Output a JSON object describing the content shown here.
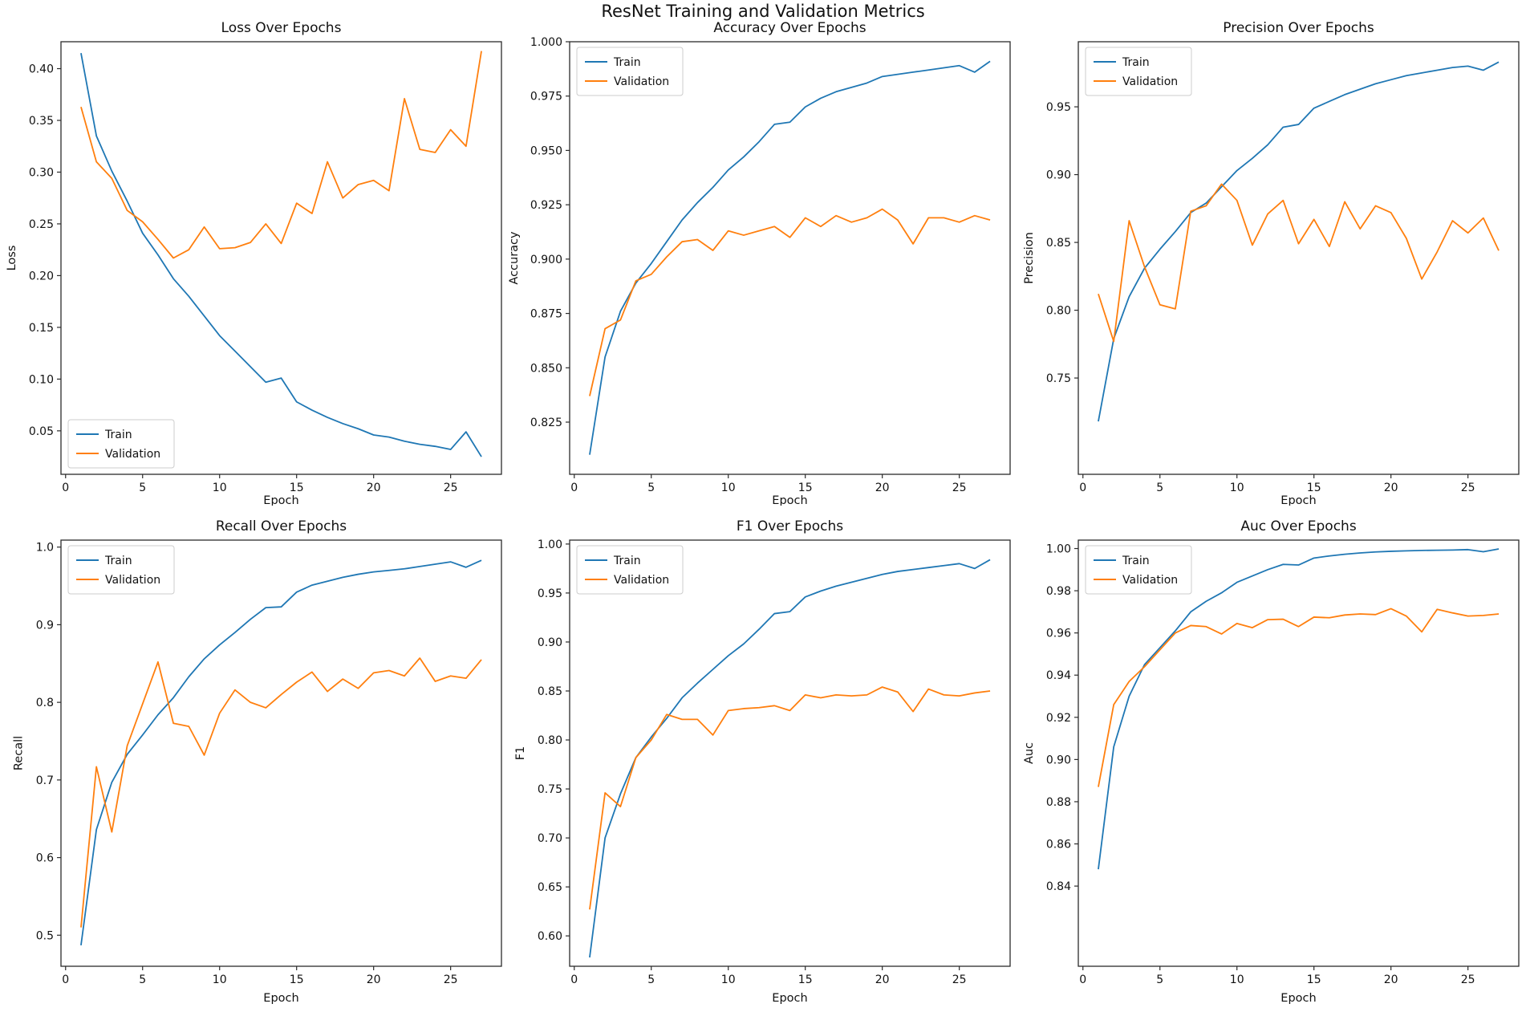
{
  "figure": {
    "suptitle": "ResNet Training and Validation Metrics",
    "background": "#ffffff",
    "text_color": "#111111",
    "spine_color": "#2b2b2b",
    "legend_border": "#cccccc",
    "series_colors": {
      "Train": "#1f77b4",
      "Validation": "#ff7f0e"
    },
    "legend_labels": [
      "Train",
      "Validation"
    ]
  },
  "epochs": [
    1,
    2,
    3,
    4,
    5,
    6,
    7,
    8,
    9,
    10,
    11,
    12,
    13,
    14,
    15,
    16,
    17,
    18,
    19,
    20,
    21,
    22,
    23,
    24,
    25,
    26,
    27
  ],
  "chart_data": [
    {
      "type": "line",
      "title": "Loss Over Epochs",
      "xlabel": "Epoch",
      "ylabel": "Loss",
      "row": 0,
      "col": 0,
      "xlim": [
        -0.3,
        28.3
      ],
      "ylim": [
        0.008,
        0.426
      ],
      "xticks": [
        0,
        5,
        10,
        15,
        20,
        25
      ],
      "yticks": [
        0.05,
        0.1,
        0.15,
        0.2,
        0.25,
        0.3,
        0.35,
        0.4
      ],
      "ytick_decimals": 2,
      "legend_position": "lower-left",
      "grid": false,
      "series": [
        {
          "name": "Train",
          "values": [
            0.415,
            0.335,
            0.301,
            0.272,
            0.241,
            0.22,
            0.197,
            0.18,
            0.161,
            0.142,
            0.127,
            0.112,
            0.097,
            0.101,
            0.078,
            0.07,
            0.063,
            0.057,
            0.052,
            0.046,
            0.044,
            0.04,
            0.037,
            0.035,
            0.032,
            0.049,
            0.025
          ]
        },
        {
          "name": "Validation",
          "values": [
            0.363,
            0.31,
            0.294,
            0.263,
            0.252,
            0.235,
            0.217,
            0.225,
            0.247,
            0.226,
            0.227,
            0.232,
            0.25,
            0.231,
            0.27,
            0.26,
            0.31,
            0.275,
            0.288,
            0.292,
            0.282,
            0.371,
            0.322,
            0.319,
            0.341,
            0.325,
            0.417
          ]
        }
      ]
    },
    {
      "type": "line",
      "title": "Accuracy Over Epochs",
      "xlabel": "Epoch",
      "ylabel": "Accuracy",
      "row": 0,
      "col": 1,
      "xlim": [
        -0.3,
        28.3
      ],
      "ylim": [
        0.801,
        1.0
      ],
      "xticks": [
        0,
        5,
        10,
        15,
        20,
        25
      ],
      "yticks": [
        0.825,
        0.85,
        0.875,
        0.9,
        0.925,
        0.95,
        0.975,
        1.0
      ],
      "ytick_decimals": 3,
      "legend_position": "upper-left",
      "grid": false,
      "series": [
        {
          "name": "Train",
          "values": [
            0.81,
            0.855,
            0.876,
            0.889,
            0.898,
            0.908,
            0.918,
            0.926,
            0.933,
            0.941,
            0.947,
            0.954,
            0.962,
            0.963,
            0.97,
            0.974,
            0.977,
            0.979,
            0.981,
            0.984,
            0.985,
            0.986,
            0.987,
            0.988,
            0.989,
            0.986,
            0.991
          ]
        },
        {
          "name": "Validation",
          "values": [
            0.837,
            0.868,
            0.872,
            0.89,
            0.893,
            0.901,
            0.908,
            0.909,
            0.904,
            0.913,
            0.911,
            0.913,
            0.915,
            0.91,
            0.919,
            0.915,
            0.92,
            0.917,
            0.919,
            0.923,
            0.918,
            0.907,
            0.919,
            0.919,
            0.917,
            0.92,
            0.918
          ]
        }
      ]
    },
    {
      "type": "line",
      "title": "Precision Over Epochs",
      "xlabel": "Epoch",
      "ylabel": "Precision",
      "row": 0,
      "col": 2,
      "xlim": [
        -0.3,
        28.3
      ],
      "ylim": [
        0.679,
        0.998
      ],
      "xticks": [
        0,
        5,
        10,
        15,
        20,
        25
      ],
      "yticks": [
        0.75,
        0.8,
        0.85,
        0.9,
        0.95
      ],
      "ytick_decimals": 2,
      "legend_position": "upper-left",
      "grid": false,
      "series": [
        {
          "name": "Train",
          "values": [
            0.718,
            0.779,
            0.81,
            0.831,
            0.845,
            0.858,
            0.872,
            0.879,
            0.891,
            0.903,
            0.912,
            0.922,
            0.935,
            0.937,
            0.949,
            0.954,
            0.959,
            0.963,
            0.967,
            0.97,
            0.973,
            0.975,
            0.977,
            0.979,
            0.98,
            0.977,
            0.983
          ]
        },
        {
          "name": "Validation",
          "values": [
            0.812,
            0.777,
            0.866,
            0.832,
            0.804,
            0.801,
            0.873,
            0.877,
            0.893,
            0.881,
            0.848,
            0.871,
            0.881,
            0.849,
            0.867,
            0.847,
            0.88,
            0.86,
            0.877,
            0.872,
            0.853,
            0.823,
            0.843,
            0.866,
            0.857,
            0.868,
            0.844
          ]
        }
      ]
    },
    {
      "type": "line",
      "title": "Recall Over Epochs",
      "xlabel": "Epoch",
      "ylabel": "Recall",
      "row": 1,
      "col": 0,
      "xlim": [
        -0.3,
        28.3
      ],
      "ylim": [
        0.46,
        1.009
      ],
      "xticks": [
        0,
        5,
        10,
        15,
        20,
        25
      ],
      "yticks": [
        0.5,
        0.6,
        0.7,
        0.8,
        0.9,
        1.0
      ],
      "ytick_decimals": 1,
      "legend_position": "upper-left",
      "grid": false,
      "series": [
        {
          "name": "Train",
          "values": [
            0.487,
            0.636,
            0.697,
            0.733,
            0.758,
            0.784,
            0.806,
            0.833,
            0.856,
            0.874,
            0.89,
            0.907,
            0.922,
            0.923,
            0.942,
            0.951,
            0.956,
            0.961,
            0.965,
            0.968,
            0.97,
            0.972,
            0.975,
            0.978,
            0.981,
            0.974,
            0.983
          ]
        },
        {
          "name": "Validation",
          "values": [
            0.51,
            0.717,
            0.633,
            0.744,
            0.798,
            0.852,
            0.773,
            0.769,
            0.732,
            0.786,
            0.816,
            0.8,
            0.793,
            0.81,
            0.826,
            0.839,
            0.814,
            0.83,
            0.818,
            0.838,
            0.841,
            0.834,
            0.857,
            0.827,
            0.834,
            0.831,
            0.855
          ]
        }
      ]
    },
    {
      "type": "line",
      "title": "F1 Over Epochs",
      "xlabel": "Epoch",
      "ylabel": "F1",
      "row": 1,
      "col": 1,
      "xlim": [
        -0.3,
        28.3
      ],
      "ylim": [
        0.569,
        1.004
      ],
      "xticks": [
        0,
        5,
        10,
        15,
        20,
        25
      ],
      "yticks": [
        0.6,
        0.65,
        0.7,
        0.75,
        0.8,
        0.85,
        0.9,
        0.95,
        1.0
      ],
      "ytick_decimals": 2,
      "legend_position": "upper-left",
      "grid": false,
      "series": [
        {
          "name": "Train",
          "values": [
            0.578,
            0.7,
            0.745,
            0.782,
            0.803,
            0.822,
            0.843,
            0.858,
            0.872,
            0.886,
            0.898,
            0.913,
            0.929,
            0.931,
            0.946,
            0.952,
            0.957,
            0.961,
            0.965,
            0.969,
            0.972,
            0.974,
            0.976,
            0.978,
            0.98,
            0.975,
            0.984
          ]
        },
        {
          "name": "Validation",
          "values": [
            0.627,
            0.746,
            0.732,
            0.782,
            0.8,
            0.826,
            0.821,
            0.821,
            0.805,
            0.83,
            0.832,
            0.833,
            0.835,
            0.83,
            0.846,
            0.843,
            0.846,
            0.845,
            0.846,
            0.854,
            0.849,
            0.829,
            0.852,
            0.846,
            0.845,
            0.848,
            0.85
          ]
        }
      ]
    },
    {
      "type": "line",
      "title": "Auc Over Epochs",
      "xlabel": "Epoch",
      "ylabel": "Auc",
      "row": 1,
      "col": 2,
      "xlim": [
        -0.3,
        28.3
      ],
      "ylim": [
        0.802,
        1.004
      ],
      "xticks": [
        0,
        5,
        10,
        15,
        20,
        25
      ],
      "yticks": [
        0.84,
        0.86,
        0.88,
        0.9,
        0.92,
        0.94,
        0.96,
        0.98,
        1.0
      ],
      "ytick_decimals": 2,
      "legend_position": "upper-left",
      "grid": false,
      "series": [
        {
          "name": "Train",
          "values": [
            0.848,
            0.906,
            0.93,
            0.945,
            0.953,
            0.961,
            0.97,
            0.975,
            0.979,
            0.984,
            0.987,
            0.99,
            0.9925,
            0.9922,
            0.9955,
            0.9965,
            0.9973,
            0.9979,
            0.9984,
            0.9987,
            0.9989,
            0.9991,
            0.9992,
            0.9993,
            0.9995,
            0.9985,
            0.9998
          ]
        },
        {
          "name": "Validation",
          "values": [
            0.887,
            0.926,
            0.937,
            0.944,
            0.952,
            0.96,
            0.9635,
            0.963,
            0.9595,
            0.9645,
            0.9625,
            0.9663,
            0.9665,
            0.963,
            0.9675,
            0.9672,
            0.9685,
            0.969,
            0.9687,
            0.9715,
            0.968,
            0.9605,
            0.9712,
            0.9695,
            0.968,
            0.9683,
            0.969
          ]
        }
      ]
    }
  ]
}
